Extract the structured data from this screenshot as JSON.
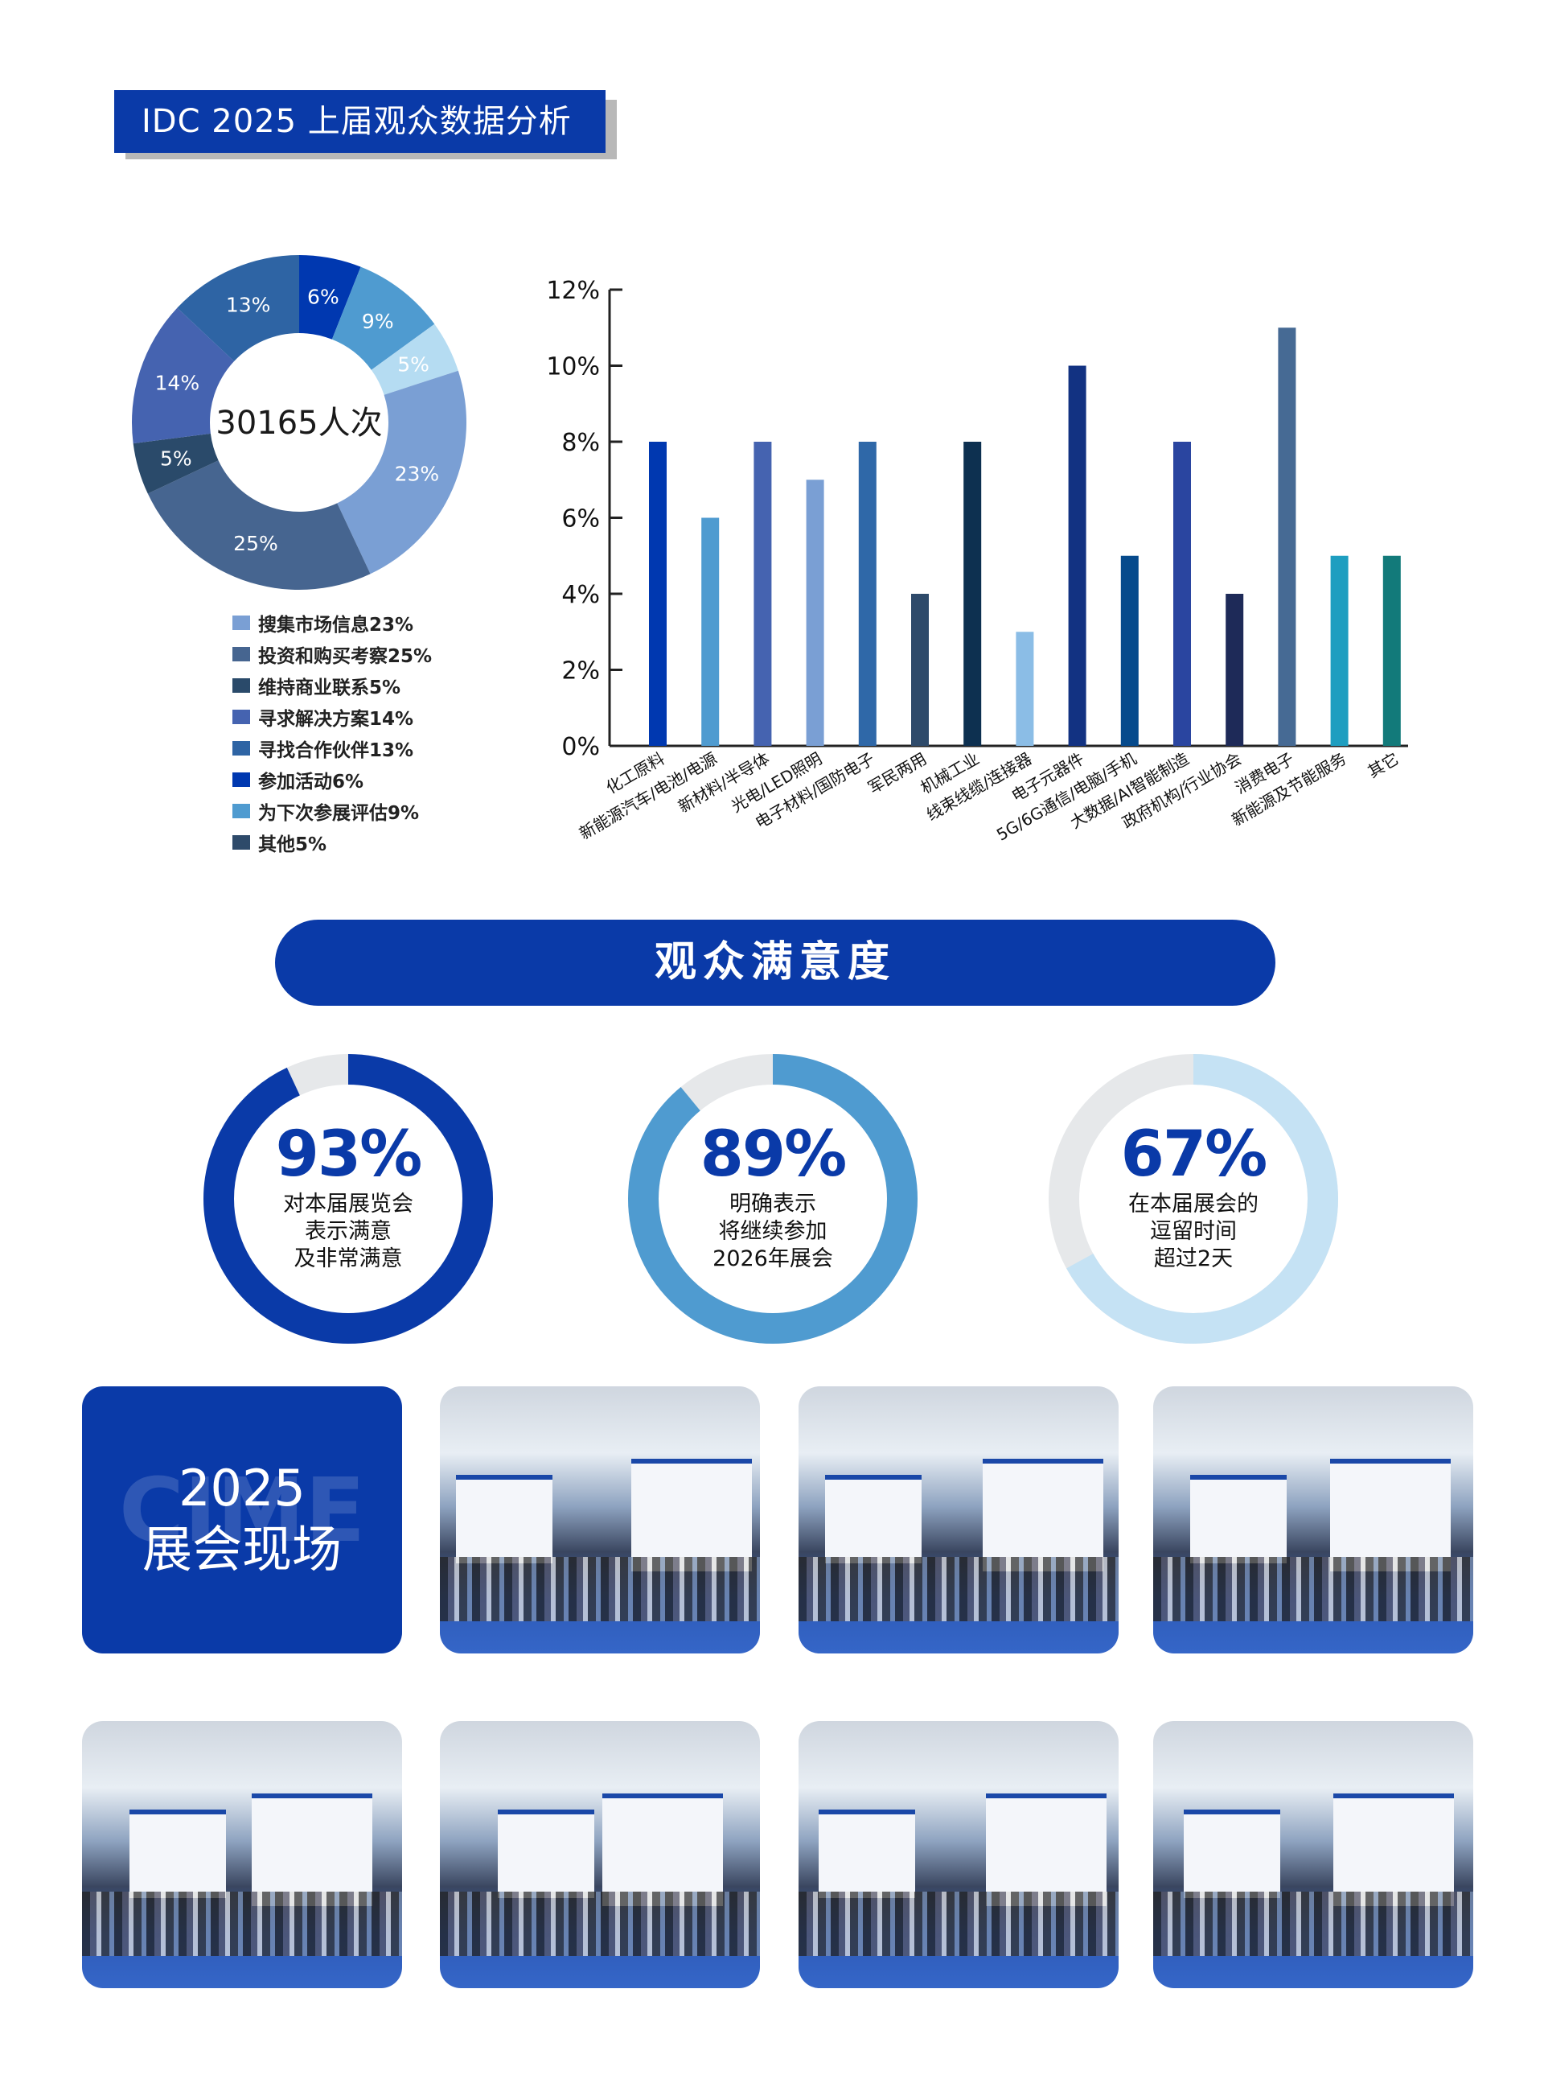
{
  "header": {
    "title": "IDC 2025 上届观众数据分析"
  },
  "chart_data": [
    {
      "type": "pie",
      "donut": true,
      "center_label": "30165人次",
      "slices": [
        {
          "label": "参加活动",
          "value": 6,
          "color": "#0038b0"
        },
        {
          "label": "为下次参展评估",
          "value": 9,
          "color": "#4f9bd0"
        },
        {
          "label": "其他",
          "value": 5,
          "color": "#b5dcf2"
        },
        {
          "label": "搜集市场信息",
          "value": 23,
          "color": "#7a9fd4"
        },
        {
          "label": "投资和购买考察",
          "value": 25,
          "color": "#466590"
        },
        {
          "label": "维持商业联系",
          "value": 5,
          "color": "#2a4a6a"
        },
        {
          "label": "寻求解决方案",
          "value": 14,
          "color": "#4563b0"
        },
        {
          "label": "寻找合作伙伴",
          "value": 13,
          "color": "#2e64a4"
        }
      ],
      "slice_labels": [
        "6%",
        "9%",
        "5%",
        "23%",
        "25%",
        "5%",
        "14%",
        "13%"
      ],
      "legend": [
        {
          "text": "搜集市场信息23%",
          "color": "#7a9fd4"
        },
        {
          "text": "投资和购买考察25%",
          "color": "#466590"
        },
        {
          "text": "维持商业联系5%",
          "color": "#2a4a6a"
        },
        {
          "text": "寻求解决方案14%",
          "color": "#4563b0"
        },
        {
          "text": "寻找合作伙伴13%",
          "color": "#2e64a4"
        },
        {
          "text": "参加活动6%",
          "color": "#0038b0"
        },
        {
          "text": "为下次参展评估9%",
          "color": "#4f9bd0"
        },
        {
          "text": "其他5%",
          "color": "#2e4a6a"
        }
      ]
    },
    {
      "type": "bar",
      "categories": [
        "化工原料",
        "新能源汽车/电池/电源",
        "新材料/半导体",
        "光电/LED照明",
        "电子材料/国防电子",
        "军民两用",
        "机械工业",
        "线束线缆/连接器",
        "电子元器件",
        "5G/6G通信/电脑/手机",
        "大数据/AI智能制造",
        "政府机构/行业协会",
        "消费电子",
        "新能源及节能服务",
        "其它"
      ],
      "values": [
        8,
        6,
        8,
        7,
        8,
        4,
        8,
        3,
        10,
        5,
        8,
        4,
        11,
        5,
        5
      ],
      "colors": [
        "#0038b0",
        "#4f9bd0",
        "#4563b0",
        "#7a9fd4",
        "#2f68a8",
        "#2e4a6a",
        "#0d3050",
        "#8bbde6",
        "#123282",
        "#064a8c",
        "#2a45a0",
        "#1e2a58",
        "#466a94",
        "#1e9ec0",
        "#127a7a"
      ],
      "yticks": [
        "0%",
        "2%",
        "4%",
        "6%",
        "8%",
        "10%",
        "12%"
      ],
      "ylim": [
        0,
        12
      ],
      "grid": false
    }
  ],
  "satisfaction": {
    "title": "观众满意度",
    "rings": [
      {
        "percent": 93,
        "label": "93%",
        "lines": [
          "对本届展览会",
          "表示满意",
          "及非常满意"
        ],
        "color": "#0a3aa8"
      },
      {
        "percent": 89,
        "label": "89%",
        "lines": [
          "明确表示",
          "将继续参加",
          "2026年展会"
        ],
        "color": "#4f9bd0"
      },
      {
        "percent": 67,
        "label": "67%",
        "lines": [
          "在本届展会的",
          "逗留时间",
          "超过2天"
        ],
        "color": "#c5e2f4"
      }
    ],
    "track_color": "#e6e8ea"
  },
  "site": {
    "year": "2025",
    "title": "展会现场",
    "watermark": "CIME"
  }
}
